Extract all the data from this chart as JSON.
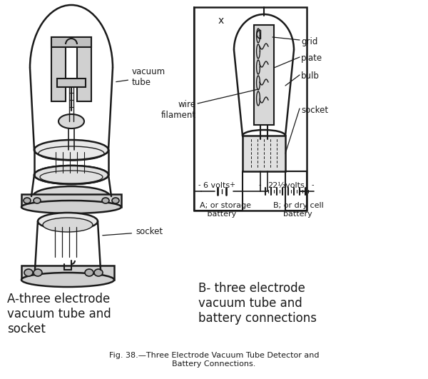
{
  "bg_color": "#ffffff",
  "ink_color": "#1a1a1a",
  "fig_width": 6.0,
  "fig_height": 5.31,
  "label_A": "A-three electrode\nvacuum tube and\nsocket",
  "label_B": "B- three electrode\nvacuum tube and\nbattery connections",
  "label_vacuum_tube": "vacuum\ntube",
  "label_socket": "socket",
  "label_wire_filament": "wire\nfilament",
  "label_grid": "grid",
  "label_plate": "plate",
  "label_bulb": "bulb",
  "label_socket2": "socket",
  "label_6v": "6 volts",
  "label_22v": "22½volts",
  "label_battery_A": "A; or storage\n   battery",
  "label_battery_B": "B; or dry cell\n    battery",
  "label_x": "x",
  "caption": "Fig. 38.—Three Electrode Vacuum Tube Detector and\nBattery Connections."
}
